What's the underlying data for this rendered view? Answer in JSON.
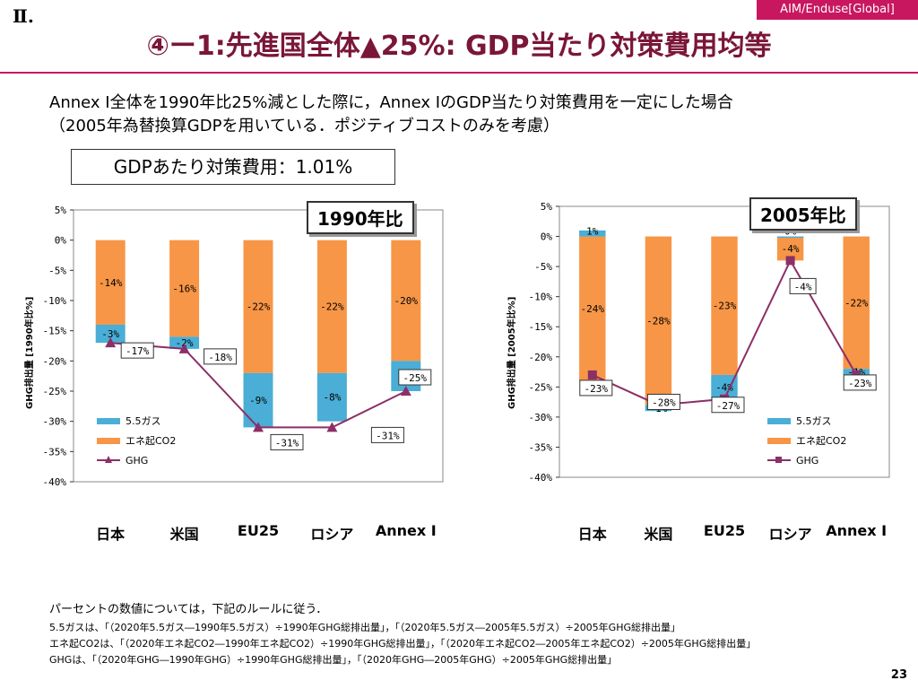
{
  "header": {
    "tag": "AIM/Enduse[Global]",
    "section": "Ⅱ.",
    "title": "④ー1:先進国全体▲25%:  GDP当たり対策費用均等"
  },
  "description": {
    "line1": "Annex I全体を1990年比25%減とした際に，Annex IのGDP当たり対策費用を一定にした場合",
    "line2": "（2005年為替換算GDPを用いている．ポジティブコストのみを考慮）"
  },
  "cost_box": "GDPあたり対策費用：1.01%",
  "colors": {
    "gas": "#4aaed6",
    "energy_co2": "#f79646",
    "ghg": "#8c2f67",
    "accent": "#c8175f"
  },
  "legend": {
    "gas": "5.5ガス",
    "energy_co2": "エネ起CO2",
    "ghg": "GHG"
  },
  "chart_data": [
    {
      "type": "bar",
      "panel_label": "1990年比",
      "ylabel": "GHG排出量 [1990年比%]",
      "categories": [
        "日本",
        "米国",
        "EU25",
        "ロシア",
        "Annex I"
      ],
      "ylim": [
        -40,
        5
      ],
      "yticks": [
        "5%",
        "0%",
        "-5%",
        "-10%",
        "-15%",
        "-20%",
        "-25%",
        "-30%",
        "-35%",
        "-40%"
      ],
      "series": [
        {
          "name": "エネ起CO2",
          "values": [
            -14,
            -16,
            -22,
            -22,
            -20
          ],
          "labels": [
            "-14%",
            "-16%",
            "-22%",
            "-22%",
            "-20%"
          ]
        },
        {
          "name": "5.5ガス",
          "values": [
            -3,
            -2,
            -9,
            -8,
            -5
          ],
          "labels": [
            "-3%",
            "-2%",
            "-9%",
            "-8%",
            "-5%"
          ]
        },
        {
          "name": "GHG",
          "values": [
            -17,
            -18,
            -31,
            -31,
            -25
          ],
          "labels": [
            "-17%",
            "-18%",
            "-31%",
            "-31%",
            "-25%"
          ]
        }
      ]
    },
    {
      "type": "bar",
      "panel_label": "2005年比",
      "ylabel": "GHG排出量 [2005年比%]",
      "categories": [
        "日本",
        "米国",
        "EU25",
        "ロシア",
        "Annex I"
      ],
      "ylim": [
        -40,
        5
      ],
      "yticks": [
        "5%",
        "0%",
        "-5%",
        "-10%",
        "-15%",
        "-20%",
        "-25%",
        "-30%",
        "-35%",
        "-40%"
      ],
      "series": [
        {
          "name": "エネ起CO2",
          "values": [
            -24,
            -28,
            -23,
            -4,
            -22
          ],
          "labels": [
            "-24%",
            "-28%",
            "-23%",
            "-4%",
            "-22%"
          ]
        },
        {
          "name": "5.5ガス",
          "values": [
            1,
            -1,
            -4,
            0,
            -1
          ],
          "labels": [
            "1%",
            "-1%",
            "-4%",
            "0%",
            "-1%"
          ]
        },
        {
          "name": "GHG",
          "values": [
            -23,
            -28,
            -27,
            -4,
            -23
          ],
          "labels": [
            "-23%",
            "-28%",
            "-27%",
            "-4%",
            "-23%"
          ]
        }
      ]
    }
  ],
  "footnotes": {
    "intro": "パーセントの数値については，下記のルールに従う．",
    "gas": "5.5ガスは、「（2020年5.5ガス―1990年5.5ガス）÷1990年GHG総排出量」，「（2020年5.5ガス―2005年5.5ガス）÷2005年GHG総排出量」",
    "co2": "エネ起CO2は、「（2020年エネ起CO2―1990年エネ起CO2）÷1990年GHG総排出量」，「（2020年エネ起CO2―2005年エネ起CO2）÷2005年GHG総排出量」",
    "ghg": "GHGは、「（2020年GHG―1990年GHG）÷1990年GHG総排出量」，「（2020年GHG―2005年GHG）÷2005年GHG総排出量」"
  },
  "page_number": "23"
}
